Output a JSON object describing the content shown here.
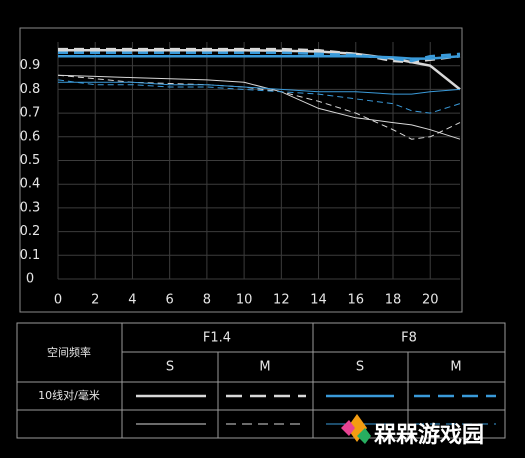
{
  "chart_data": {
    "type": "line",
    "x": [
      0,
      2,
      4,
      6,
      8,
      10,
      12,
      14,
      16,
      18,
      19,
      20,
      21.6
    ],
    "xlim": [
      0,
      21.6
    ],
    "xticks": [
      0,
      2,
      4,
      6,
      8,
      10,
      12,
      14,
      16,
      18,
      20
    ],
    "ylim": [
      0,
      1
    ],
    "yticks": [
      0,
      0.1,
      0.2,
      0.3,
      0.4,
      0.5,
      0.6,
      0.7,
      0.8,
      0.9
    ],
    "grid": true,
    "series": [
      {
        "color": "#d8d8d8",
        "dashed": false,
        "width": 2.5,
        "values": [
          0.965,
          0.965,
          0.965,
          0.965,
          0.965,
          0.965,
          0.963,
          0.96,
          0.95,
          0.93,
          0.915,
          0.9,
          0.8
        ]
      },
      {
        "color": "#d8d8d8",
        "dashed": true,
        "width": 2.5,
        "values": [
          0.97,
          0.97,
          0.97,
          0.97,
          0.97,
          0.97,
          0.97,
          0.965,
          0.95,
          0.92,
          0.915,
          0.925,
          0.94
        ]
      },
      {
        "color": "#3a9ad9",
        "dashed": false,
        "width": 2.5,
        "values": [
          0.94,
          0.94,
          0.94,
          0.94,
          0.94,
          0.94,
          0.94,
          0.94,
          0.94,
          0.935,
          0.93,
          0.93,
          0.94
        ]
      },
      {
        "color": "#3a9ad9",
        "dashed": true,
        "width": 2.5,
        "values": [
          0.955,
          0.955,
          0.955,
          0.955,
          0.955,
          0.955,
          0.955,
          0.95,
          0.945,
          0.93,
          0.92,
          0.94,
          0.95
        ]
      },
      {
        "color": "#d8d8d8",
        "dashed": false,
        "width": 1,
        "values": [
          0.86,
          0.855,
          0.85,
          0.845,
          0.84,
          0.83,
          0.79,
          0.72,
          0.68,
          0.66,
          0.65,
          0.63,
          0.59
        ]
      },
      {
        "color": "#d8d8d8",
        "dashed": true,
        "width": 1,
        "values": [
          0.86,
          0.845,
          0.83,
          0.825,
          0.82,
          0.81,
          0.79,
          0.75,
          0.7,
          0.63,
          0.59,
          0.6,
          0.66
        ]
      },
      {
        "color": "#3a9ad9",
        "dashed": false,
        "width": 1,
        "values": [
          0.83,
          0.83,
          0.83,
          0.82,
          0.82,
          0.81,
          0.8,
          0.79,
          0.79,
          0.78,
          0.78,
          0.79,
          0.8
        ]
      },
      {
        "color": "#3a9ad9",
        "dashed": true,
        "width": 1,
        "values": [
          0.84,
          0.82,
          0.82,
          0.81,
          0.81,
          0.8,
          0.79,
          0.78,
          0.76,
          0.74,
          0.71,
          0.7,
          0.74
        ]
      }
    ]
  },
  "legend_table": {
    "header": "空间频率",
    "apertures": [
      "F1.4",
      "F8"
    ],
    "directions": [
      "S",
      "M",
      "S",
      "M"
    ],
    "rows": [
      "10线对/毫米"
    ]
  },
  "watermark": "槑槑游戏园"
}
